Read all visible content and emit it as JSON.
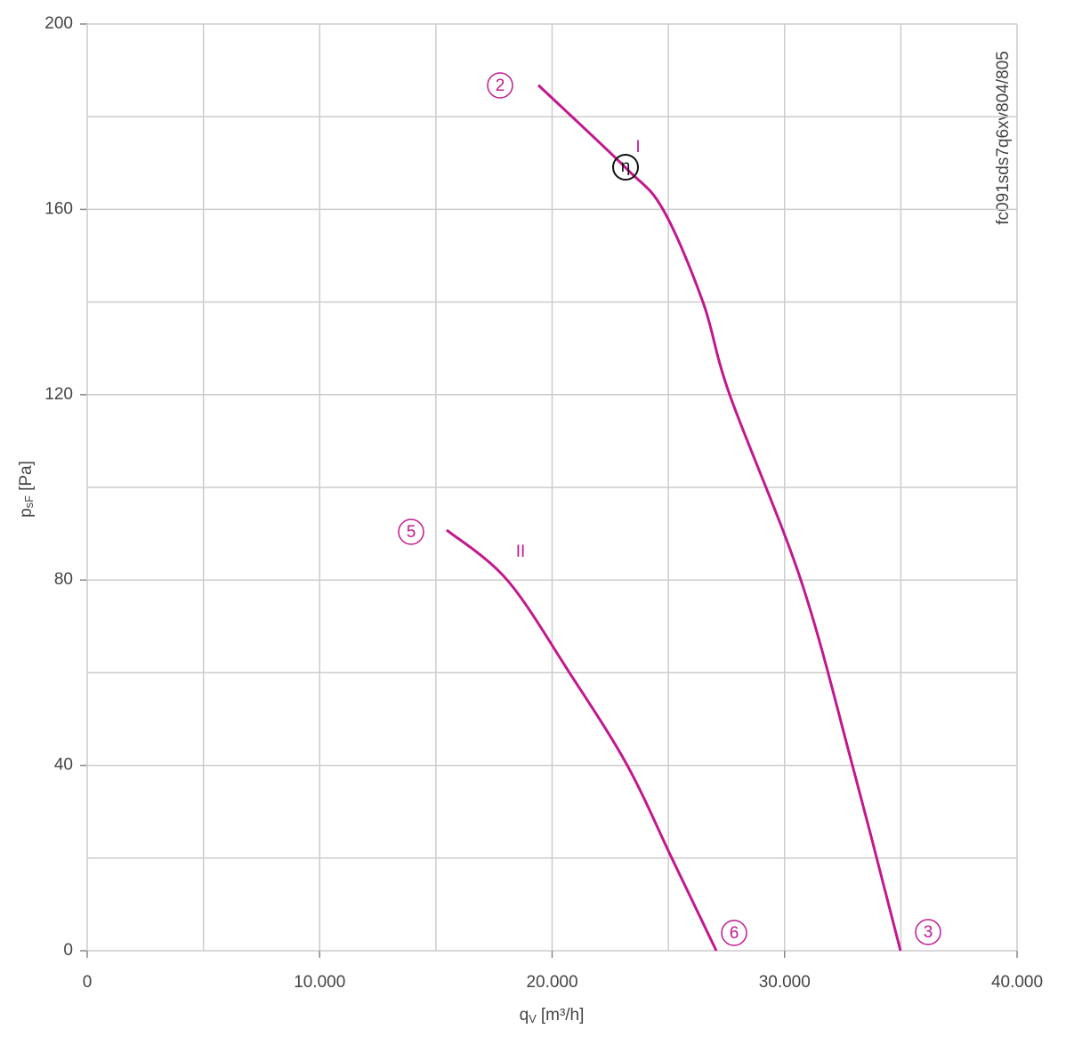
{
  "chart_data": {
    "type": "line",
    "x_label": {
      "main": "q",
      "sub": "V",
      "unit": "[m³/h]"
    },
    "y_label": {
      "main": "p",
      "sub": "sF",
      "unit": "[Pa]"
    },
    "xlim": [
      0,
      40000
    ],
    "ylim": [
      0,
      200
    ],
    "xticks": [
      {
        "value": 0,
        "label": "0"
      },
      {
        "value": 10000,
        "label": "10.000"
      },
      {
        "value": 20000,
        "label": "20.000"
      },
      {
        "value": 30000,
        "label": "30.000"
      },
      {
        "value": 40000,
        "label": "40.000"
      }
    ],
    "yticks": [
      0,
      40,
      80,
      120,
      160,
      200
    ],
    "xgrid": [
      5000,
      15000,
      25000,
      35000
    ],
    "ygrid": [
      20,
      60,
      100,
      140,
      180
    ],
    "grid": true,
    "series": [
      {
        "name": "I",
        "color": "#c2188f",
        "x": [
          19407,
          23158,
          24766,
          26488,
          27637,
          30699,
          32919,
          34986
        ],
        "values": [
          186.8,
          169,
          160,
          140,
          120,
          80,
          40,
          0
        ]
      },
      {
        "name": "II",
        "color": "#c2188f",
        "x": [
          15464,
          18067,
          20746,
          23234,
          25148,
          27062
        ],
        "values": [
          90.8,
          80,
          60,
          40,
          20,
          0
        ]
      }
    ],
    "point_labels": [
      "2",
      "3",
      "5",
      "6"
    ],
    "efficiency_label": "η",
    "code": "fc091sds7q6xv804/805"
  }
}
